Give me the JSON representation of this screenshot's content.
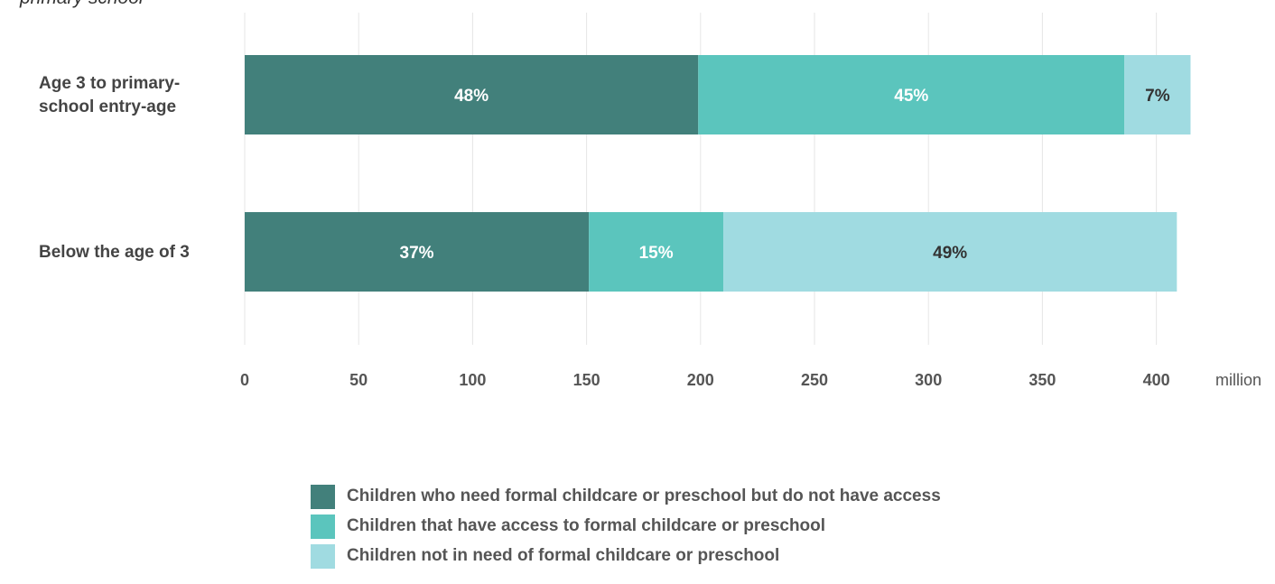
{
  "subtitle": "primary school",
  "chart_data": {
    "type": "bar",
    "orientation": "horizontal",
    "stacked": true,
    "unit_label": "million",
    "categories": [
      "Age 3 to primary-school entry-age",
      "Below the age of 3"
    ],
    "category_label_lines": [
      [
        "Age 3 to primary-",
        "school entry-age"
      ],
      [
        "Below the age of 3"
      ]
    ],
    "series": [
      {
        "name": "Children who need formal childcare or preschool but do not have access",
        "values": [
          199,
          151
        ],
        "labels": [
          "48%",
          "37%"
        ],
        "color": "#42807b",
        "label_color": "#ffffff"
      },
      {
        "name": "Children that have access to formal childcare or preschool",
        "values": [
          187,
          59
        ],
        "labels": [
          "45%",
          "15%"
        ],
        "color": "#5bc5bd",
        "label_color": "#ffffff"
      },
      {
        "name": "Children not in need of formal childcare or preschool",
        "values": [
          29,
          199
        ],
        "labels": [
          "7%",
          "49%"
        ],
        "color": "#a0dbe1",
        "label_color": "#333333"
      }
    ],
    "xlim": [
      0,
      415
    ],
    "xticks": [
      0,
      50,
      100,
      150,
      200,
      250,
      300,
      350,
      400
    ],
    "grid": true,
    "legend_position": "bottom"
  }
}
